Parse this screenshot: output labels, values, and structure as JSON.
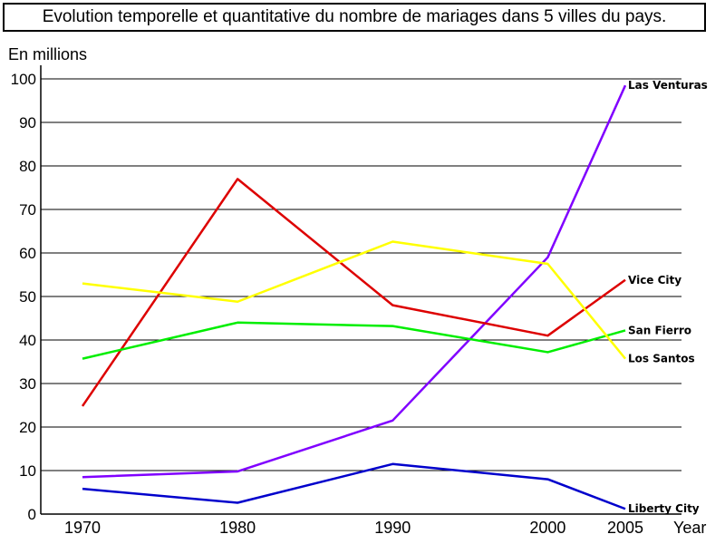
{
  "chart_data": {
    "type": "line",
    "title": "Evolution temporelle et quantitative du nombre de mariages dans 5 villes du pays.",
    "ylabel": "En millions",
    "xlabel": "Year",
    "x": [
      1970,
      1980,
      1990,
      2000,
      2005
    ],
    "ylim": [
      0,
      100
    ],
    "yticks": [
      0,
      10,
      20,
      30,
      40,
      50,
      60,
      70,
      80,
      90,
      100
    ],
    "grid": "horizontal",
    "series": [
      {
        "name": "Las Venturas",
        "color": "#8000ff",
        "values": [
          8.5,
          9.8,
          21.5,
          59,
          98.5
        ]
      },
      {
        "name": "Vice City",
        "color": "#dd0000",
        "values": [
          24.8,
          77,
          48,
          41,
          53.8
        ]
      },
      {
        "name": "San Fierro",
        "color": "#00ee00",
        "values": [
          35.7,
          44,
          43.2,
          37.2,
          42.2
        ]
      },
      {
        "name": "Los Santos",
        "color": "#ffff00",
        "values": [
          53,
          48.8,
          62.6,
          57.5,
          35.7
        ]
      },
      {
        "name": "Liberty City",
        "color": "#0000cc",
        "values": [
          5.8,
          2.6,
          11.5,
          8,
          1.2
        ]
      }
    ]
  }
}
